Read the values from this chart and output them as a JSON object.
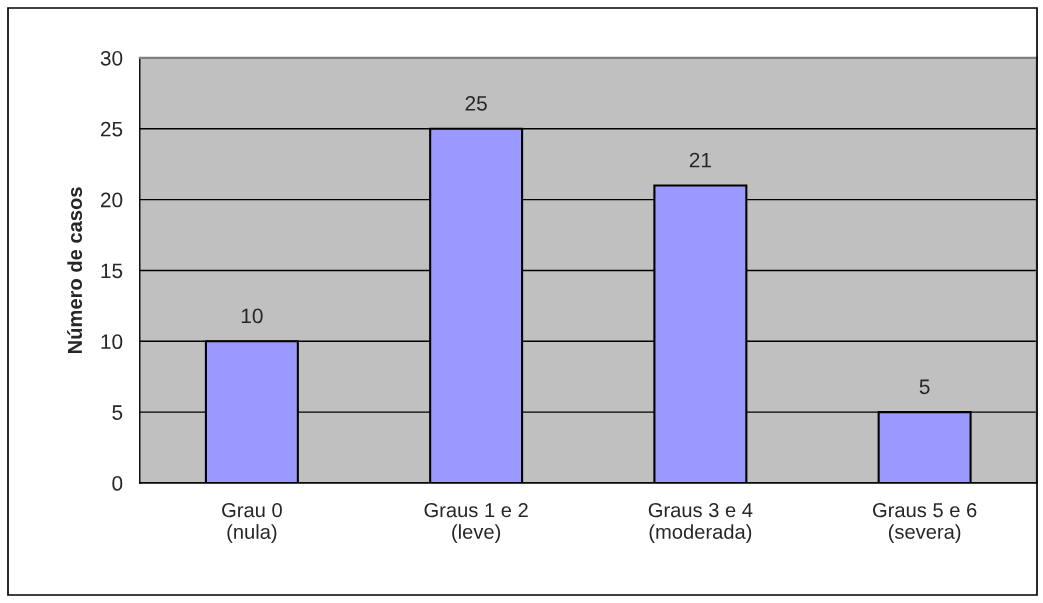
{
  "chart_data": {
    "type": "bar",
    "ylabel": "Número de casos",
    "categories": [
      "Grau 0\n(nula)",
      "Graus 1 e 2\n(leve)",
      "Graus 3 e 4\n(moderada)",
      "Graus 5 e 6\n(severa)"
    ],
    "values": [
      10,
      25,
      21,
      5
    ],
    "color": "#9999ff",
    "ylim": [
      0,
      30
    ],
    "yticks": [
      0,
      5,
      10,
      15,
      20,
      25,
      30
    ],
    "grid": "y",
    "data_labels": true,
    "legend": false
  }
}
